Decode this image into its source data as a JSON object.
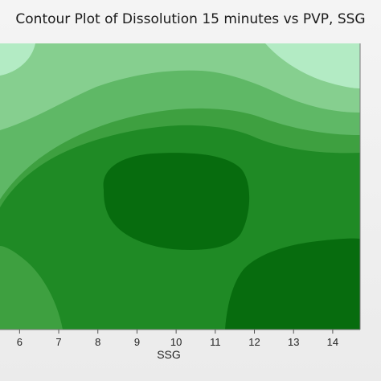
{
  "chart_data": {
    "type": "contour",
    "title": "Contour Plot of Dissolution 15 minutes vs PVP, SSG",
    "xlabel": "SSG",
    "ylabel": "",
    "xlim": [
      5.5,
      14.7
    ],
    "x_ticks": [
      6,
      7,
      8,
      9,
      10,
      11,
      12,
      13,
      14
    ],
    "grid": false,
    "legend": "none",
    "levels_colors": [
      "#b3ebc4",
      "#86cf8f",
      "#5fb866",
      "#3ea040",
      "#1f8a25",
      "#076c0e"
    ]
  }
}
